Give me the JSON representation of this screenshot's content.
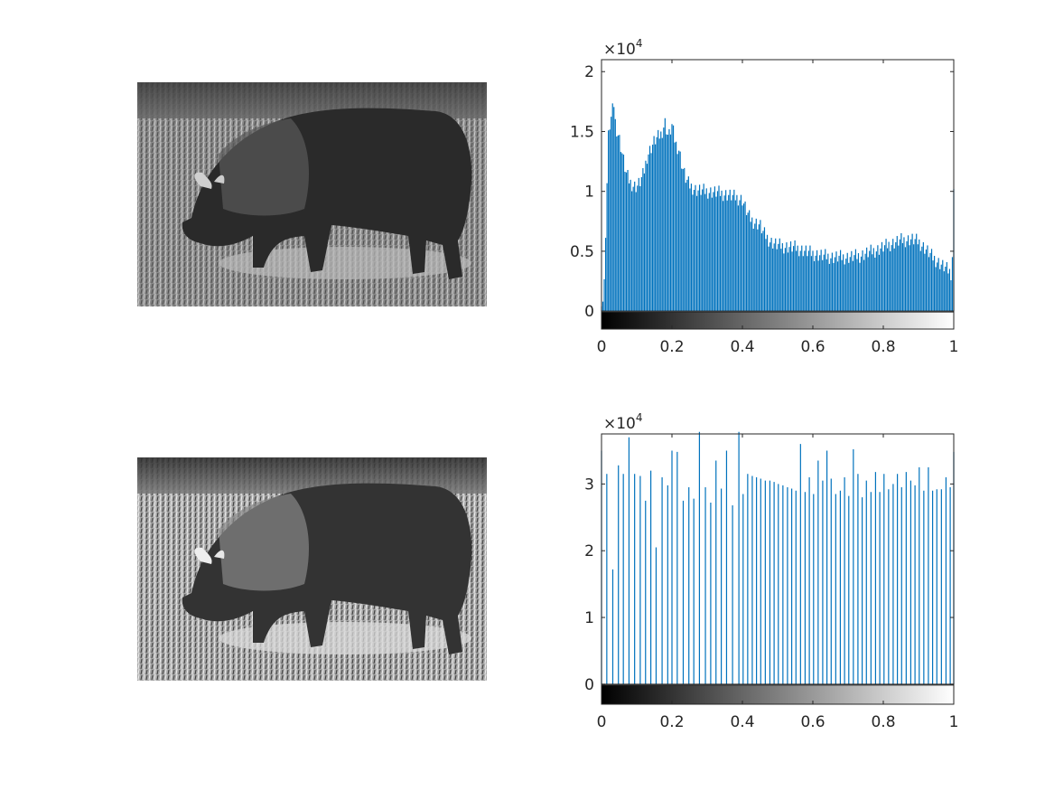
{
  "figure": {
    "images": [
      {
        "name": "original-bison-image",
        "kind": "grayscale-photo",
        "subject": "bison"
      },
      {
        "name": "equalized-bison-image",
        "kind": "grayscale-photo",
        "subject": "bison",
        "high_contrast": true
      }
    ]
  },
  "chart_data": [
    {
      "type": "bar",
      "name": "original-histogram",
      "bar_color": "#0072bd",
      "xlim": [
        0,
        1
      ],
      "ylim": [
        -1500,
        21000
      ],
      "y_exponent_base": "×10",
      "y_exponent_power": "4",
      "xticks": [
        0,
        0.2,
        0.4,
        0.6,
        0.8,
        1
      ],
      "xtick_labels": [
        "0",
        "0.2",
        "0.4",
        "0.6",
        "0.8",
        "1"
      ],
      "yticks": [
        0,
        5000,
        10000,
        15000,
        20000
      ],
      "ytick_labels": [
        "0",
        "0.5",
        "1",
        "1.5",
        "2"
      ],
      "colorbar": "gray",
      "bins": 256,
      "envelope": [
        [
          0,
          400
        ],
        [
          0.005,
          900
        ],
        [
          0.01,
          4000
        ],
        [
          0.015,
          10000
        ],
        [
          0.02,
          15000
        ],
        [
          0.03,
          16500
        ],
        [
          0.035,
          17400
        ],
        [
          0.04,
          15500
        ],
        [
          0.05,
          14500
        ],
        [
          0.06,
          13000
        ],
        [
          0.07,
          11500
        ],
        [
          0.08,
          10800
        ],
        [
          0.09,
          10500
        ],
        [
          0.1,
          10400
        ],
        [
          0.11,
          10800
        ],
        [
          0.12,
          11500
        ],
        [
          0.13,
          13000
        ],
        [
          0.15,
          14200
        ],
        [
          0.17,
          14800
        ],
        [
          0.18,
          15800
        ],
        [
          0.19,
          14500
        ],
        [
          0.2,
          15500
        ],
        [
          0.21,
          14000
        ],
        [
          0.22,
          13500
        ],
        [
          0.23,
          12000
        ],
        [
          0.24,
          11000
        ],
        [
          0.25,
          10500
        ],
        [
          0.27,
          10100
        ],
        [
          0.3,
          10000
        ],
        [
          0.33,
          9900
        ],
        [
          0.36,
          9700
        ],
        [
          0.38,
          9500
        ],
        [
          0.4,
          9300
        ],
        [
          0.41,
          8500
        ],
        [
          0.42,
          7800
        ],
        [
          0.43,
          7500
        ],
        [
          0.45,
          7200
        ],
        [
          0.46,
          6500
        ],
        [
          0.48,
          5800
        ],
        [
          0.5,
          5500
        ],
        [
          0.52,
          5400
        ],
        [
          0.55,
          5300
        ],
        [
          0.58,
          5000
        ],
        [
          0.6,
          4800
        ],
        [
          0.63,
          4600
        ],
        [
          0.66,
          4500
        ],
        [
          0.7,
          4500
        ],
        [
          0.73,
          4600
        ],
        [
          0.76,
          4900
        ],
        [
          0.79,
          5200
        ],
        [
          0.82,
          5600
        ],
        [
          0.85,
          5900
        ],
        [
          0.88,
          6000
        ],
        [
          0.9,
          5800
        ],
        [
          0.92,
          5200
        ],
        [
          0.94,
          4500
        ],
        [
          0.96,
          4000
        ],
        [
          0.98,
          3500
        ],
        [
          0.995,
          3100
        ],
        [
          1,
          10200
        ]
      ]
    },
    {
      "type": "bar",
      "name": "equalized-histogram",
      "bar_color": "#0072bd",
      "xlim": [
        0,
        1
      ],
      "ylim": [
        -3000,
        37500
      ],
      "y_exponent_base": "×10",
      "y_exponent_power": "4",
      "xticks": [
        0,
        0.2,
        0.4,
        0.6,
        0.8,
        1
      ],
      "xtick_labels": [
        "0",
        "0.2",
        "0.4",
        "0.6",
        "0.8",
        "1"
      ],
      "yticks": [
        0,
        10000,
        20000,
        30000
      ],
      "ytick_labels": [
        "0",
        "1",
        "2",
        "3"
      ],
      "colorbar": "gray",
      "x": [
        0.0,
        0.015,
        0.032,
        0.048,
        0.062,
        0.078,
        0.094,
        0.11,
        0.125,
        0.14,
        0.155,
        0.172,
        0.188,
        0.2,
        0.215,
        0.232,
        0.248,
        0.262,
        0.278,
        0.295,
        0.31,
        0.325,
        0.34,
        0.355,
        0.372,
        0.39,
        0.402,
        0.415,
        0.428,
        0.44,
        0.452,
        0.465,
        0.478,
        0.49,
        0.502,
        0.515,
        0.528,
        0.54,
        0.552,
        0.565,
        0.578,
        0.59,
        0.602,
        0.615,
        0.628,
        0.64,
        0.652,
        0.665,
        0.678,
        0.69,
        0.702,
        0.715,
        0.728,
        0.74,
        0.752,
        0.765,
        0.778,
        0.79,
        0.802,
        0.815,
        0.828,
        0.84,
        0.852,
        0.865,
        0.878,
        0.89,
        0.902,
        0.915,
        0.928,
        0.94,
        0.952,
        0.965,
        0.978,
        0.99,
        1.0
      ],
      "values": [
        35000,
        31500,
        17200,
        32800,
        31500,
        37000,
        31500,
        31200,
        27500,
        32000,
        20500,
        31000,
        29800,
        35000,
        34800,
        27500,
        29500,
        27800,
        37800,
        29500,
        27200,
        33500,
        29300,
        35000,
        26800,
        37800,
        28500,
        31500,
        31200,
        31000,
        30800,
        30500,
        30500,
        30300,
        30000,
        29800,
        29500,
        29300,
        29000,
        36000,
        28800,
        31000,
        28500,
        33500,
        30500,
        35000,
        30800,
        28500,
        29000,
        31000,
        28200,
        35200,
        31500,
        28000,
        30500,
        28800,
        31800,
        28800,
        31500,
        29200,
        30000,
        31500,
        29500,
        31800,
        30500,
        29800,
        32500,
        29000,
        32500,
        29000,
        29200,
        29200,
        31000,
        29500,
        34800
      ]
    }
  ]
}
